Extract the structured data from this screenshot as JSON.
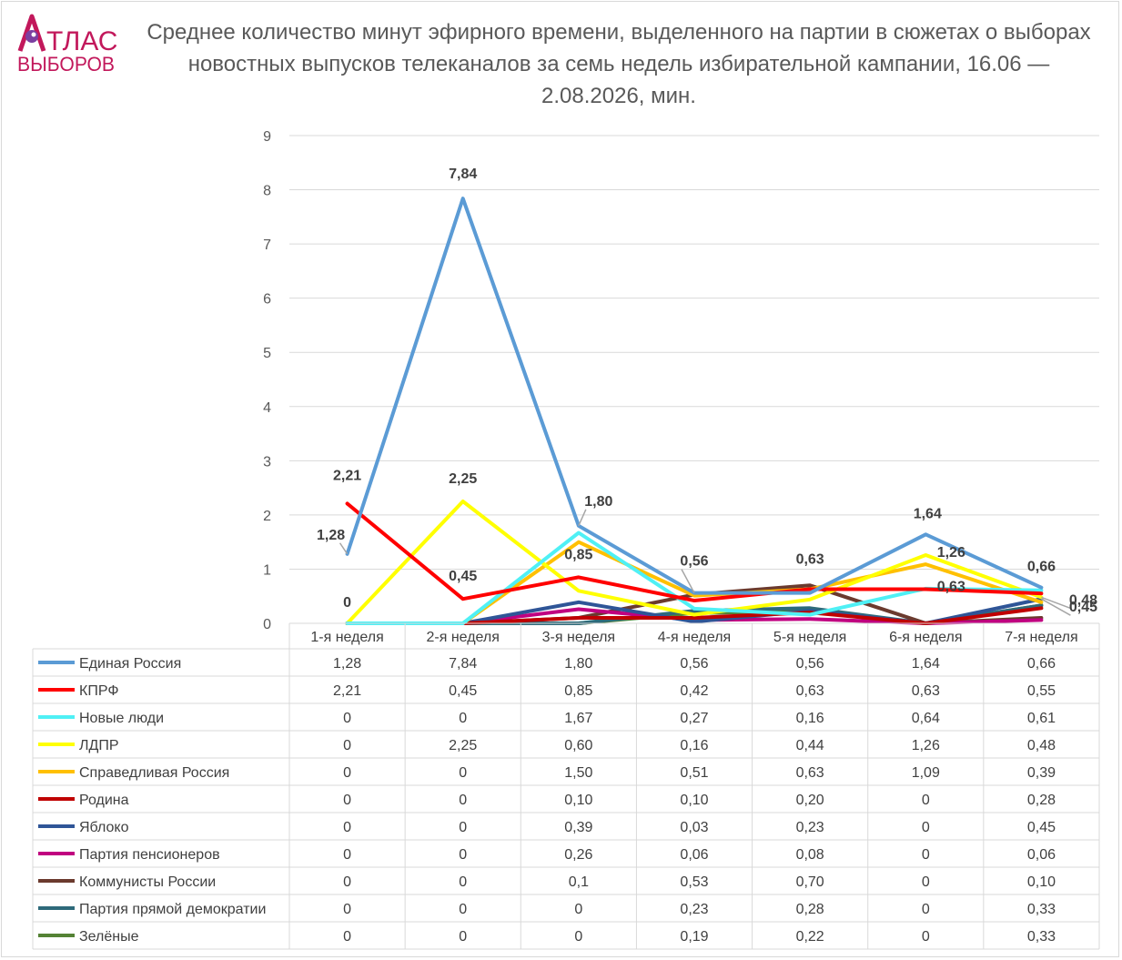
{
  "logo": {
    "line1": "ТЛАС",
    "line2": "ВЫБОРОВ",
    "color": "#c2185b",
    "dot_color": "#7b3fa0"
  },
  "title": "Среднее количество минут эфирного времени, выделенного на партии в сюжетах о выборах новостных выпусков телеканалов за семь недель избирательной кампании, 16.06 — 2.08.2026, мин.",
  "chart_data": {
    "type": "line",
    "categories": [
      "1-я неделя",
      "2-я неделя",
      "3-я неделя",
      "4-я неделя",
      "5-я неделя",
      "6-я неделя",
      "7-я неделя"
    ],
    "ylim": [
      0,
      9
    ],
    "yticks": [
      0,
      1,
      2,
      3,
      4,
      5,
      6,
      7,
      8,
      9
    ],
    "grid": true,
    "legend": "data-table-below",
    "series": [
      {
        "name": "Единая Россия",
        "color": "#5b9bd5",
        "values": [
          1.28,
          7.84,
          1.8,
          0.56,
          0.56,
          1.64,
          0.66
        ],
        "labels": [
          "1,28",
          "7,84",
          "1,80",
          "0,56",
          "0,56",
          "1,64",
          "0,66"
        ]
      },
      {
        "name": "КПРФ",
        "color": "#ff0000",
        "values": [
          2.21,
          0.45,
          0.85,
          0.42,
          0.63,
          0.63,
          0.55
        ],
        "labels": [
          "2,21",
          "0,45",
          "0,85",
          "0,42",
          "0,63",
          "0,63",
          "0,55"
        ]
      },
      {
        "name": "Новые люди",
        "color": "#4ff0f5",
        "values": [
          0,
          0,
          1.67,
          0.27,
          0.16,
          0.64,
          0.61
        ],
        "labels": [
          "0",
          "0",
          "1,67",
          "0,27",
          "0,16",
          "0,64",
          "0,61"
        ]
      },
      {
        "name": "ЛДПР",
        "color": "#ffff00",
        "values": [
          0,
          2.25,
          0.6,
          0.16,
          0.44,
          1.26,
          0.48
        ],
        "labels": [
          "0",
          "2,25",
          "0,60",
          "0,16",
          "0,44",
          "1,26",
          "0,48"
        ]
      },
      {
        "name": "Справедливая Россия",
        "color": "#ffc000",
        "values": [
          0,
          0,
          1.5,
          0.51,
          0.63,
          1.09,
          0.39
        ],
        "labels": [
          "0",
          "0",
          "1,50",
          "0,51",
          "0,63",
          "1,09",
          "0,39"
        ]
      },
      {
        "name": "Родина",
        "color": "#c00000",
        "values": [
          0,
          0,
          0.1,
          0.1,
          0.2,
          0,
          0.28
        ],
        "labels": [
          "0",
          "0",
          "0,10",
          "0,10",
          "0,20",
          "0",
          "0,28"
        ]
      },
      {
        "name": "Яблоко",
        "color": "#2f5597",
        "values": [
          0,
          0,
          0.39,
          0.03,
          0.23,
          0,
          0.45
        ],
        "labels": [
          "0",
          "0",
          "0,39",
          "0,03",
          "0,23",
          "0",
          "0,45"
        ]
      },
      {
        "name": "Партия пенсионеров",
        "color": "#c00080",
        "values": [
          0,
          0,
          0.26,
          0.06,
          0.08,
          0,
          0.06
        ],
        "labels": [
          "0",
          "0",
          "0,26",
          "0,06",
          "0,08",
          "0",
          "0,06"
        ]
      },
      {
        "name": "Коммунисты России",
        "color": "#6b3a2e",
        "values": [
          0,
          0,
          0.1,
          0.53,
          0.7,
          0,
          0.1
        ],
        "labels": [
          "0",
          "0",
          "0,1",
          "0,53",
          "0,70",
          "0",
          "0,10"
        ]
      },
      {
        "name": "Партия прямой демократии",
        "color": "#2e6a7a",
        "values": [
          0,
          0,
          0,
          0.23,
          0.28,
          0,
          0.33
        ],
        "labels": [
          "0",
          "0",
          "0",
          "0,23",
          "0,28",
          "0",
          "0,33"
        ]
      },
      {
        "name": "Зелёные",
        "color": "#548235",
        "values": [
          0,
          0,
          0,
          0.19,
          0.22,
          0,
          0.33
        ],
        "labels": [
          "0",
          "0",
          "0",
          "0,19",
          "0,22",
          "0",
          "0,33"
        ]
      }
    ],
    "annotations": [
      {
        "text": "1,28",
        "series": "Единая Россия",
        "index": 0
      },
      {
        "text": "7,84",
        "series": "Единая Россия",
        "index": 1
      },
      {
        "text": "1,80",
        "series": "Единая Россия",
        "index": 2
      },
      {
        "text": "0,56",
        "series": "Единая Россия",
        "index": 3
      },
      {
        "text": "1,64",
        "series": "Единая Россия",
        "index": 5
      },
      {
        "text": "0,66",
        "series": "Единая Россия",
        "index": 6
      },
      {
        "text": "2,21",
        "series": "КПРФ",
        "index": 0
      },
      {
        "text": "0,45",
        "series": "КПРФ",
        "index": 1
      },
      {
        "text": "0,85",
        "series": "КПРФ",
        "index": 2
      },
      {
        "text": "0,63",
        "series": "КПРФ",
        "index": 4
      },
      {
        "text": "0,63",
        "series": "КПРФ",
        "index": 5
      },
      {
        "text": "0",
        "series": "ЛДПР",
        "index": 0
      },
      {
        "text": "2,25",
        "series": "ЛДПР",
        "index": 1
      },
      {
        "text": "1,26",
        "series": "ЛДПР",
        "index": 5
      },
      {
        "text": "0,48",
        "series": "ЛДПР",
        "index": 6
      },
      {
        "text": "0,45",
        "series": "Яблоко",
        "index": 6
      }
    ]
  }
}
